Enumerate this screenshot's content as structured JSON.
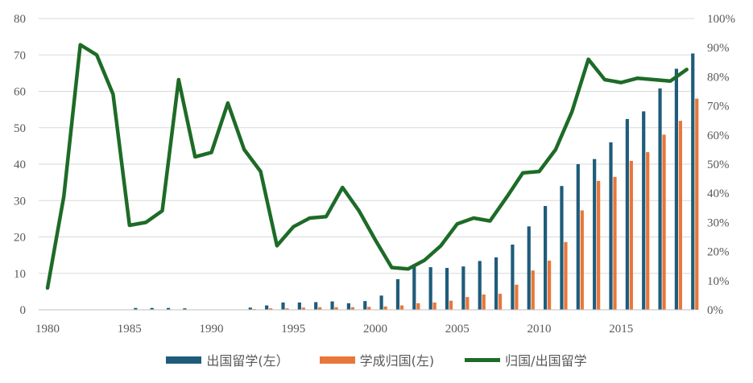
{
  "chart_data": {
    "type": "bar+line",
    "x": [
      1980,
      1981,
      1982,
      1983,
      1984,
      1985,
      1986,
      1987,
      1988,
      1989,
      1990,
      1991,
      1992,
      1993,
      1994,
      1995,
      1996,
      1997,
      1998,
      1999,
      2000,
      2001,
      2002,
      2003,
      2004,
      2005,
      2006,
      2007,
      2008,
      2009,
      2010,
      2011,
      2012,
      2013,
      2014,
      2015,
      2016,
      2017,
      2018,
      2019
    ],
    "x_ticks": [
      "1980",
      "1985",
      "1990",
      "1995",
      "2000",
      "2005",
      "2010",
      "2015"
    ],
    "x_tick_values": [
      1980,
      1985,
      1990,
      1995,
      2000,
      2005,
      2010,
      2015
    ],
    "y_left_ticks": [
      "0",
      "10",
      "20",
      "30",
      "40",
      "50",
      "60",
      "70",
      "80"
    ],
    "y_right_ticks": [
      "0%",
      "10%",
      "20%",
      "30%",
      "40%",
      "50%",
      "60%",
      "70%",
      "80%",
      "90%",
      "100%"
    ],
    "ylim_left": [
      0,
      80
    ],
    "ylim_right": [
      0,
      100
    ],
    "grid": true,
    "legend_position": "bottom",
    "series": [
      {
        "name": "出国留学(左）",
        "kind": "bar",
        "axis": "left",
        "color": "#1F5C7A",
        "values": [
          0,
          0,
          0,
          0,
          0,
          0.5,
          0.5,
          0.5,
          0.4,
          0,
          0,
          0,
          0.6,
          1.2,
          2.0,
          2.0,
          2.1,
          2.3,
          1.8,
          2.4,
          3.9,
          8.4,
          12.5,
          11.7,
          11.5,
          11.9,
          13.4,
          14.4,
          17.9,
          22.9,
          28.5,
          34.0,
          40.0,
          41.4,
          46.0,
          52.4,
          54.5,
          60.8,
          66.2,
          70.4
        ]
      },
      {
        "name": "学成归国(左)",
        "kind": "bar",
        "axis": "left",
        "color": "#E8773A",
        "values": [
          0,
          0,
          0,
          0,
          0,
          0,
          0,
          0,
          0,
          0,
          0,
          0,
          0.2,
          0.4,
          0.4,
          0.6,
          0.7,
          0.7,
          0.7,
          0.8,
          0.9,
          1.2,
          1.8,
          2.0,
          2.5,
          3.5,
          4.2,
          4.4,
          6.9,
          10.8,
          13.5,
          18.6,
          27.3,
          35.4,
          36.5,
          40.9,
          43.3,
          48.1,
          51.9,
          58.0
        ]
      },
      {
        "name": "归国/出国留学",
        "kind": "line",
        "axis": "right",
        "color": "#1D6B27",
        "values": [
          7.5,
          39,
          91,
          87.5,
          74,
          29,
          30,
          34,
          79,
          52.5,
          54,
          71,
          55,
          47.5,
          22,
          28.5,
          31.5,
          32,
          42,
          34,
          24,
          14.5,
          14,
          17,
          22,
          29.5,
          31.5,
          30.5,
          38.5,
          47,
          47.5,
          55,
          68,
          86,
          79,
          78,
          79.5,
          79,
          78.5,
          82.5
        ]
      }
    ]
  }
}
